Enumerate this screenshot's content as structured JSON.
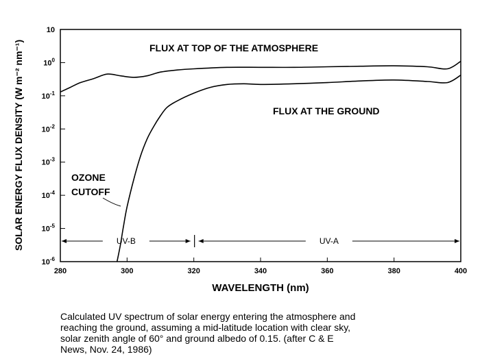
{
  "chart_data": {
    "type": "line",
    "title": "",
    "xlabel": "WAVELENGTH (nm)",
    "ylabel": "SOLAR ENERGY FLUX DENSITY (W m⁻² nm⁻¹)",
    "xlim": [
      280,
      400
    ],
    "ylim": [
      1e-06,
      10
    ],
    "yscale": "log",
    "grid": false,
    "x_ticks": [
      "280",
      "300",
      "320",
      "340",
      "360",
      "380",
      "400"
    ],
    "y_ticks": [
      {
        "value": 10,
        "base": "10",
        "exp": ""
      },
      {
        "value": 1,
        "base": "10",
        "exp": "0"
      },
      {
        "value": 0.1,
        "base": "10",
        "exp": "-1"
      },
      {
        "value": 0.01,
        "base": "10",
        "exp": "-2"
      },
      {
        "value": 0.001,
        "base": "10",
        "exp": "-3"
      },
      {
        "value": 0.0001,
        "base": "10",
        "exp": "-4"
      },
      {
        "value": 1e-05,
        "base": "10",
        "exp": "-5"
      },
      {
        "value": 1e-06,
        "base": "10",
        "exp": "-6"
      }
    ],
    "series": [
      {
        "name": "FLUX AT TOP OF THE ATMOSPHERE",
        "x": [
          280,
          283,
          286,
          290,
          294,
          298,
          302,
          306,
          310,
          315,
          320,
          330,
          340,
          350,
          360,
          370,
          380,
          390,
          396,
          400
        ],
        "y": [
          0.13,
          0.18,
          0.25,
          0.33,
          0.45,
          0.4,
          0.36,
          0.4,
          0.52,
          0.6,
          0.65,
          0.72,
          0.72,
          0.72,
          0.75,
          0.78,
          0.8,
          0.75,
          0.65,
          1.1
        ]
      },
      {
        "name": "FLUX AT THE GROUND",
        "x": [
          297,
          298,
          299,
          300,
          302,
          304,
          306,
          308,
          310,
          312,
          315,
          320,
          325,
          330,
          335,
          340,
          350,
          360,
          370,
          380,
          390,
          396,
          400
        ],
        "y": [
          1e-06,
          3.2e-06,
          1.3e-05,
          4.5e-05,
          0.0003,
          0.0015,
          0.005,
          0.012,
          0.025,
          0.045,
          0.07,
          0.12,
          0.18,
          0.22,
          0.23,
          0.22,
          0.23,
          0.25,
          0.28,
          0.3,
          0.27,
          0.25,
          0.42
        ]
      }
    ],
    "annotations": {
      "top_label": "FLUX AT TOP OF THE ATMOSPHERE",
      "ground_label": "FLUX AT THE GROUND",
      "ozone_line1": "OZONE",
      "ozone_line2": "CUTOFF",
      "uvb": "UV-B",
      "uva": "UV-A",
      "uvb_range": [
        280,
        320
      ],
      "uva_range": [
        320,
        400
      ]
    }
  },
  "caption": {
    "line1": "Calculated UV spectrum of solar energy entering the atmosphere and",
    "line2": "reaching the ground, assuming a mid-latitude location with clear sky,",
    "line3": "solar zenith angle of  60° and ground albedo of 0.15.  (after C & E",
    "line4": "News, Nov. 24, 1986)"
  }
}
